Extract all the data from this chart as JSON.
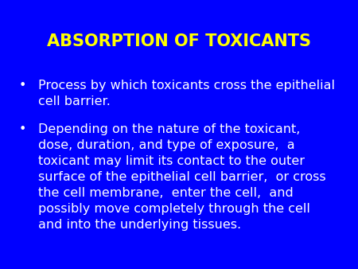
{
  "title": "ABSORPTION OF TOXICANTS",
  "title_color": "#FFFF00",
  "background_color": "#0000FF",
  "text_color": "#FFFFFF",
  "title_fontsize": 15,
  "body_fontsize": 11.5,
  "bullet1_line1": "Process by which toxicants cross the epithelial",
  "bullet1_line2": "cell barrier.",
  "bullet2_lines": [
    "Depending on the nature of the toxicant,",
    "dose, duration, and type of exposure,  a",
    "toxicant may limit its contact to the outer",
    "surface of the epithelial cell barrier,  or cross",
    "the cell membrane,  enter the cell,  and",
    "possibly move completely through the cell",
    "and into the underlying tissues."
  ],
  "font_family": "DejaVu Sans",
  "figsize": [
    4.5,
    3.38
  ],
  "dpi": 100
}
